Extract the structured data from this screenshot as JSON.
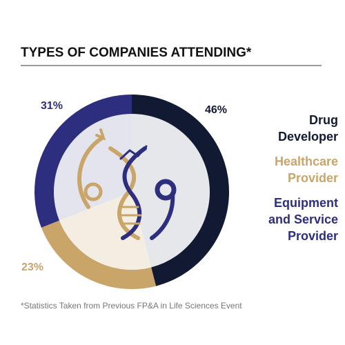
{
  "chart_data": {
    "type": "donut",
    "title": "TYPES OF COMPANIES ATTENDING*",
    "categories": [
      "Drug Developer",
      "Healthcare Provider",
      "Equipment and Service Provider"
    ],
    "values": [
      46,
      23,
      31
    ],
    "value_labels": [
      "46%",
      "23%",
      "31%"
    ],
    "colors": [
      "#121a33",
      "#c9a56a",
      "#2d2e7e"
    ],
    "footnote": "*Statistics Taken from Previous FP&A in Life Sciences Event"
  }
}
